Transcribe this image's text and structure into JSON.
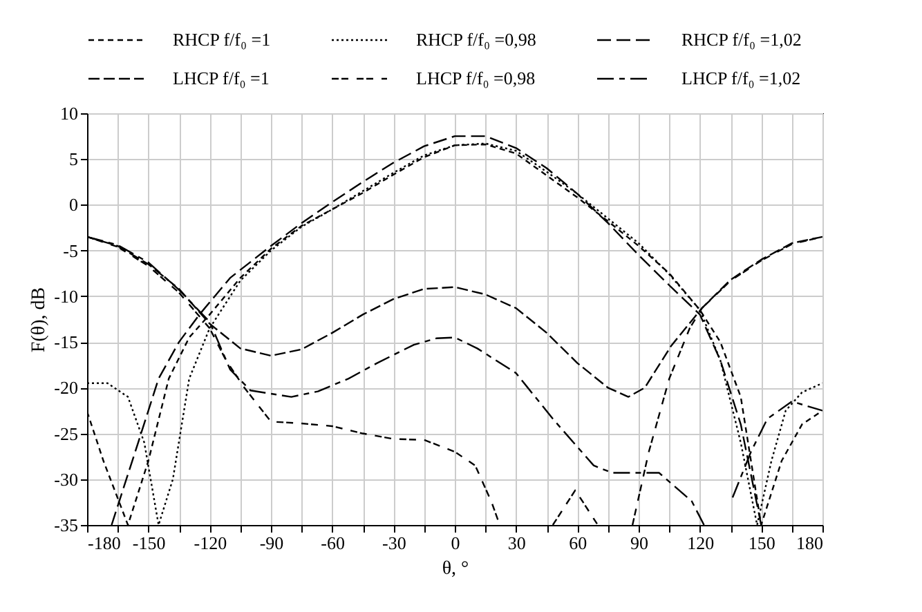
{
  "chart_data": {
    "type": "line",
    "xlabel": "θ, °",
    "ylabel": "F(θ), dB",
    "xlim": [
      -180,
      180
    ],
    "ylim": [
      -35,
      10
    ],
    "xticks": [
      -180,
      {
        "value": -165,
        "label": null
      },
      -150,
      {
        "value": -135,
        "label": null
      },
      -120,
      {
        "value": -105,
        "label": null
      },
      -90,
      {
        "value": -75,
        "label": null
      },
      -60,
      {
        "value": -45,
        "label": null
      },
      -30,
      {
        "value": -15,
        "label": null
      },
      0,
      {
        "value": 15,
        "label": null
      },
      30,
      {
        "value": 45,
        "label": null
      },
      60,
      {
        "value": 75,
        "label": null
      },
      90,
      {
        "value": 105,
        "label": null
      },
      120,
      {
        "value": 135,
        "label": null
      },
      150,
      {
        "value": 165,
        "label": null
      },
      180
    ],
    "yticks": [
      -35,
      -30,
      -25,
      -20,
      -15,
      -10,
      -5,
      0,
      5,
      10
    ],
    "grid": true,
    "legend": "top",
    "marker": "none",
    "series": [
      {
        "name": "RHCP f/f₀ =1",
        "color": "#000000",
        "line_style": "dashed",
        "x": [
          -180,
          -172,
          -160,
          -150,
          -140,
          -130,
          -120,
          -105,
          -90,
          -75,
          -60,
          -45,
          -30,
          -15,
          0,
          15,
          30,
          45,
          60,
          75,
          90,
          105,
          120,
          130,
          140,
          150,
          160,
          170,
          180
        ],
        "values": [
          -22.6,
          -28,
          -35,
          -28,
          -19,
          -14.5,
          -12,
          -8,
          -4.8,
          -2.3,
          -0.5,
          1.3,
          3.3,
          5.2,
          6.5,
          6.6,
          5.6,
          3.2,
          0.8,
          -1.8,
          -4.5,
          -7.5,
          -11.5,
          -15,
          -21,
          -35,
          -28,
          -24,
          -22.5
        ]
      },
      {
        "name": "RHCP f/f₀ =0,98",
        "color": "#000000",
        "line_style": "dotted",
        "x": [
          -180,
          -170,
          -160,
          -152,
          -145,
          -138,
          -130,
          -120,
          -105,
          -90,
          -75,
          -60,
          -45,
          -30,
          -15,
          0,
          15,
          30,
          45,
          60,
          75,
          90,
          105,
          120,
          130,
          140,
          148,
          155,
          162,
          170,
          180
        ],
        "values": [
          -19.5,
          -19.5,
          -21,
          -26,
          -35,
          -30,
          -19,
          -13.5,
          -8.3,
          -5,
          -2.4,
          -0.5,
          1.5,
          3.5,
          5.4,
          6.5,
          6.7,
          5.9,
          3.6,
          1.2,
          -1.5,
          -4.2,
          -7.6,
          -11.5,
          -17,
          -26,
          -35,
          -28,
          -22.5,
          -20.5,
          -19.5
        ]
      },
      {
        "name": "RHCP f/f₀ =1,02",
        "color": "#000000",
        "line_style": "dashed",
        "x": [
          -168,
          -155,
          -145,
          -135,
          -125,
          -110,
          -90,
          -75,
          -60,
          -45,
          -30,
          -15,
          0,
          15,
          30,
          45,
          60,
          75,
          90,
          105,
          120,
          130,
          140,
          150
        ],
        "values": [
          -35,
          -26,
          -19,
          -15,
          -12,
          -8,
          -4.5,
          -2,
          0.3,
          2.5,
          4.6,
          6.4,
          7.5,
          7.5,
          6.2,
          4,
          1.2,
          -2,
          -5.5,
          -8.8,
          -12,
          -17,
          -24,
          -35
        ]
      },
      {
        "name": "LHCP f/f₀ =1",
        "color": "#000000",
        "line_style": "dashed",
        "x": [
          -180,
          -165,
          -150,
          -135,
          -120,
          -105,
          -90,
          -75,
          -60,
          -45,
          -30,
          -15,
          0,
          15,
          30,
          45,
          60,
          75,
          85,
          93,
          106,
          121,
          135,
          150,
          165,
          180
        ],
        "values": [
          -3.5,
          -4.5,
          -6.5,
          -9.2,
          -13,
          -15.7,
          -16.5,
          -15.8,
          -14,
          -12,
          -10.3,
          -9.2,
          -9,
          -9.8,
          -11.3,
          -14,
          -17.3,
          -20,
          -21,
          -20,
          -15.4,
          -11.3,
          -8.2,
          -6,
          -4.2,
          -3.5
        ]
      },
      {
        "name": "LHCP f/f₀ =0,98",
        "color": "#000000",
        "line_style": "dashed",
        "x": [
          -180,
          -165,
          -150,
          -135,
          -120,
          -112,
          -103,
          -90,
          -75,
          -60,
          -45,
          -30,
          -15,
          0,
          10,
          18,
          22,
          35,
          48,
          59,
          70,
          78,
          87,
          95,
          105,
          115,
          121,
          135,
          150,
          165,
          180
        ],
        "values": [
          -3.5,
          -4.6,
          -6.7,
          -9.6,
          -13.5,
          -17,
          -20,
          -23.7,
          -23.9,
          -24.2,
          -25,
          -25.6,
          -25.7,
          -27,
          -28.5,
          -32.5,
          -35,
          null,
          -35,
          -31.2,
          -35,
          null,
          -35,
          -27,
          -19,
          -13.5,
          -11.3,
          -8.3,
          -6.1,
          -4.3,
          -3.5
        ]
      },
      {
        "name": "LHCP f/f₀ =1,02",
        "color": "#000000",
        "line_style": "dashed",
        "x": [
          -180,
          -165,
          -150,
          -135,
          -120,
          -110,
          -100,
          -80,
          -67,
          -52,
          -38,
          -20,
          -9,
          0,
          11,
          30,
          48,
          68,
          77,
          90,
          100,
          116,
          122,
          128,
          136,
          145,
          153,
          165,
          180
        ],
        "values": [
          -3.5,
          -4.4,
          -6.3,
          -9.3,
          -12.8,
          -18,
          -20.3,
          -21,
          -20.4,
          -19,
          -17.3,
          -15.3,
          -14.6,
          -14.5,
          -15.7,
          -18.4,
          -23.4,
          -28.5,
          -29.3,
          -29.3,
          -29.3,
          -32.4,
          -35,
          null,
          -32,
          -27,
          -23.4,
          -21.5,
          -22.5
        ]
      }
    ]
  }
}
